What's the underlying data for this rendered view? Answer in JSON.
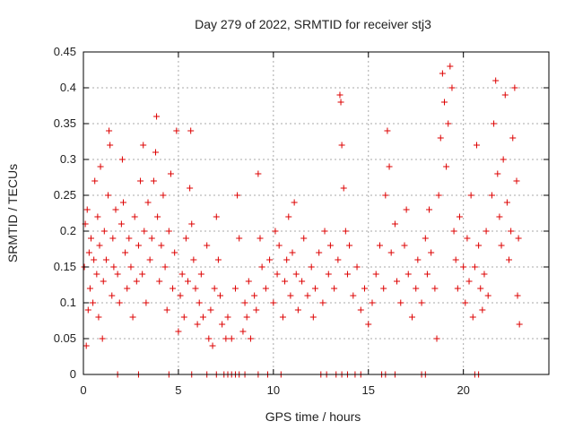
{
  "chart_data": {
    "type": "scatter",
    "title": "Day 279 of 2022, SRMTID for receiver stj3",
    "xlabel": "GPS time / hours",
    "ylabel": "SRMTID / TECUs",
    "xlim": [
      0,
      24.5
    ],
    "ylim": [
      0,
      0.45
    ],
    "xticks": [
      0,
      5,
      10,
      15,
      20
    ],
    "xtick_labels": [
      "0",
      "5",
      "10",
      "15",
      "20"
    ],
    "yticks": [
      0,
      0.05,
      0.1,
      0.15,
      0.2,
      0.25,
      0.3,
      0.35,
      0.4,
      0.45
    ],
    "ytick_labels": [
      "0",
      "0.05",
      "0.1",
      "0.15",
      "0.2",
      "0.25",
      "0.3",
      "0.35",
      "0.4",
      "0.45"
    ],
    "grid": true,
    "marker": "+",
    "color": "#dd0000",
    "series": [
      {
        "points": [
          [
            0.05,
            0.15
          ],
          [
            0.1,
            0.21
          ],
          [
            0.15,
            0.04
          ],
          [
            0.2,
            0.23
          ],
          [
            0.25,
            0.09
          ],
          [
            0.3,
            0.17
          ],
          [
            0.35,
            0.12
          ],
          [
            0.4,
            0.19
          ],
          [
            0.5,
            0.1
          ],
          [
            0.55,
            0.16
          ],
          [
            0.6,
            0.27
          ],
          [
            0.7,
            0.14
          ],
          [
            0.75,
            0.22
          ],
          [
            0.8,
            0.08
          ],
          [
            0.85,
            0.18
          ],
          [
            0.9,
            0.29
          ],
          [
            1.0,
            0.05
          ],
          [
            1.05,
            0.13
          ],
          [
            1.1,
            0.2
          ],
          [
            1.2,
            0.16
          ],
          [
            1.3,
            0.25
          ],
          [
            1.35,
            0.34
          ],
          [
            1.4,
            0.32
          ],
          [
            1.5,
            0.11
          ],
          [
            1.55,
            0.19
          ],
          [
            1.6,
            0.15
          ],
          [
            1.7,
            0.23
          ],
          [
            1.8,
            0.14
          ],
          [
            1.9,
            0.1
          ],
          [
            2.0,
            0.21
          ],
          [
            2.05,
            0.3
          ],
          [
            2.1,
            0.24
          ],
          [
            2.2,
            0.17
          ],
          [
            2.3,
            0.12
          ],
          [
            2.4,
            0.19
          ],
          [
            2.5,
            0.15
          ],
          [
            2.6,
            0.08
          ],
          [
            2.7,
            0.22
          ],
          [
            2.8,
            0.13
          ],
          [
            2.9,
            0.18
          ],
          [
            3.0,
            0.27
          ],
          [
            3.1,
            0.14
          ],
          [
            3.15,
            0.32
          ],
          [
            3.2,
            0.2
          ],
          [
            3.3,
            0.1
          ],
          [
            3.4,
            0.24
          ],
          [
            3.5,
            0.16
          ],
          [
            3.6,
            0.19
          ],
          [
            3.7,
            0.27
          ],
          [
            3.8,
            0.31
          ],
          [
            3.85,
            0.36
          ],
          [
            3.9,
            0.22
          ],
          [
            4.0,
            0.13
          ],
          [
            4.1,
            0.18
          ],
          [
            4.2,
            0.25
          ],
          [
            4.3,
            0.15
          ],
          [
            4.4,
            0.09
          ],
          [
            4.5,
            0.2
          ],
          [
            4.6,
            0.28
          ],
          [
            4.7,
            0.12
          ],
          [
            4.8,
            0.17
          ],
          [
            4.9,
            0.34
          ],
          [
            5.0,
            0.06
          ],
          [
            5.1,
            0.11
          ],
          [
            5.2,
            0.14
          ],
          [
            5.3,
            0.08
          ],
          [
            5.4,
            0.19
          ],
          [
            5.5,
            0.13
          ],
          [
            5.6,
            0.26
          ],
          [
            5.65,
            0.34
          ],
          [
            5.7,
            0.21
          ],
          [
            5.8,
            0.16
          ],
          [
            5.9,
            0.12
          ],
          [
            6.0,
            0.07
          ],
          [
            6.1,
            0.1
          ],
          [
            6.2,
            0.14
          ],
          [
            6.3,
            0.08
          ],
          [
            6.5,
            0.18
          ],
          [
            6.6,
            0.05
          ],
          [
            6.7,
            0.09
          ],
          [
            6.8,
            0.04
          ],
          [
            6.9,
            0.12
          ],
          [
            7.0,
            0.22
          ],
          [
            7.1,
            0.16
          ],
          [
            7.2,
            0.11
          ],
          [
            7.3,
            0.07
          ],
          [
            7.5,
            0.05
          ],
          [
            7.6,
            0.08
          ],
          [
            7.8,
            0.05
          ],
          [
            8.0,
            0.12
          ],
          [
            8.1,
            0.25
          ],
          [
            8.2,
            0.19
          ],
          [
            8.4,
            0.06
          ],
          [
            8.5,
            0.1
          ],
          [
            8.6,
            0.08
          ],
          [
            8.7,
            0.13
          ],
          [
            8.8,
            0.05
          ],
          [
            9.0,
            0.11
          ],
          [
            9.1,
            0.09
          ],
          [
            9.2,
            0.28
          ],
          [
            9.3,
            0.19
          ],
          [
            9.4,
            0.15
          ],
          [
            9.6,
            0.12
          ],
          [
            9.8,
            0.16
          ],
          [
            10.0,
            0.1
          ],
          [
            10.1,
            0.2
          ],
          [
            10.2,
            0.14
          ],
          [
            10.3,
            0.18
          ],
          [
            10.5,
            0.08
          ],
          [
            10.6,
            0.13
          ],
          [
            10.7,
            0.16
          ],
          [
            10.8,
            0.22
          ],
          [
            10.9,
            0.11
          ],
          [
            11.0,
            0.17
          ],
          [
            11.1,
            0.24
          ],
          [
            11.2,
            0.14
          ],
          [
            11.3,
            0.09
          ],
          [
            11.5,
            0.13
          ],
          [
            11.6,
            0.19
          ],
          [
            11.8,
            0.11
          ],
          [
            12.0,
            0.15
          ],
          [
            12.1,
            0.08
          ],
          [
            12.2,
            0.12
          ],
          [
            12.4,
            0.17
          ],
          [
            12.6,
            0.1
          ],
          [
            12.7,
            0.2
          ],
          [
            12.9,
            0.14
          ],
          [
            13.0,
            0.18
          ],
          [
            13.2,
            0.12
          ],
          [
            13.4,
            0.16
          ],
          [
            13.5,
            0.39
          ],
          [
            13.55,
            0.38
          ],
          [
            13.6,
            0.32
          ],
          [
            13.7,
            0.26
          ],
          [
            13.8,
            0.2
          ],
          [
            13.9,
            0.14
          ],
          [
            14.0,
            0.18
          ],
          [
            14.2,
            0.11
          ],
          [
            14.4,
            0.15
          ],
          [
            14.6,
            0.09
          ],
          [
            14.8,
            0.12
          ],
          [
            15.0,
            0.07
          ],
          [
            15.2,
            0.1
          ],
          [
            15.4,
            0.14
          ],
          [
            15.6,
            0.18
          ],
          [
            15.8,
            0.12
          ],
          [
            15.9,
            0.25
          ],
          [
            16.0,
            0.34
          ],
          [
            16.1,
            0.29
          ],
          [
            16.2,
            0.17
          ],
          [
            16.4,
            0.21
          ],
          [
            16.5,
            0.13
          ],
          [
            16.7,
            0.1
          ],
          [
            16.9,
            0.18
          ],
          [
            17.0,
            0.23
          ],
          [
            17.1,
            0.14
          ],
          [
            17.3,
            0.08
          ],
          [
            17.5,
            0.12
          ],
          [
            17.6,
            0.16
          ],
          [
            17.8,
            0.1
          ],
          [
            18.0,
            0.19
          ],
          [
            18.1,
            0.14
          ],
          [
            18.2,
            0.23
          ],
          [
            18.3,
            0.17
          ],
          [
            18.5,
            0.12
          ],
          [
            18.6,
            0.05
          ],
          [
            18.7,
            0.25
          ],
          [
            18.8,
            0.33
          ],
          [
            18.9,
            0.42
          ],
          [
            19.0,
            0.38
          ],
          [
            19.1,
            0.29
          ],
          [
            19.2,
            0.35
          ],
          [
            19.3,
            0.43
          ],
          [
            19.4,
            0.4
          ],
          [
            19.5,
            0.2
          ],
          [
            19.6,
            0.16
          ],
          [
            19.7,
            0.12
          ],
          [
            19.8,
            0.22
          ],
          [
            20.0,
            0.15
          ],
          [
            20.1,
            0.1
          ],
          [
            20.2,
            0.19
          ],
          [
            20.3,
            0.13
          ],
          [
            20.4,
            0.25
          ],
          [
            20.5,
            0.08
          ],
          [
            20.6,
            0.15
          ],
          [
            20.7,
            0.32
          ],
          [
            20.8,
            0.18
          ],
          [
            20.9,
            0.12
          ],
          [
            21.0,
            0.09
          ],
          [
            21.1,
            0.14
          ],
          [
            21.2,
            0.2
          ],
          [
            21.3,
            0.11
          ],
          [
            21.5,
            0.25
          ],
          [
            21.6,
            0.35
          ],
          [
            21.7,
            0.41
          ],
          [
            21.8,
            0.28
          ],
          [
            21.9,
            0.22
          ],
          [
            22.0,
            0.18
          ],
          [
            22.1,
            0.3
          ],
          [
            22.2,
            0.39
          ],
          [
            22.3,
            0.24
          ],
          [
            22.4,
            0.16
          ],
          [
            22.5,
            0.2
          ],
          [
            22.6,
            0.33
          ],
          [
            22.7,
            0.4
          ],
          [
            22.8,
            0.27
          ],
          [
            22.85,
            0.11
          ],
          [
            22.9,
            0.19
          ],
          [
            22.95,
            0.07
          ]
        ]
      },
      {
        "points": [
          [
            1.8,
            0
          ],
          [
            2.9,
            0
          ],
          [
            4.5,
            0
          ],
          [
            5.7,
            0
          ],
          [
            6.5,
            0
          ],
          [
            7.0,
            0
          ],
          [
            7.4,
            0
          ],
          [
            7.6,
            0
          ],
          [
            7.8,
            0
          ],
          [
            8.0,
            0
          ],
          [
            8.2,
            0
          ],
          [
            8.5,
            0
          ],
          [
            9.2,
            0
          ],
          [
            9.7,
            0
          ],
          [
            10.4,
            0
          ],
          [
            12.5,
            0
          ],
          [
            12.8,
            0
          ],
          [
            13.3,
            0
          ],
          [
            13.6,
            0
          ],
          [
            13.9,
            0
          ],
          [
            14.3,
            0
          ],
          [
            14.6,
            0
          ],
          [
            15.7,
            0
          ],
          [
            15.9,
            0
          ],
          [
            16.4,
            0
          ],
          [
            17.8,
            0
          ],
          [
            18.0,
            0
          ],
          [
            20.6,
            0
          ],
          [
            20.8,
            0
          ]
        ]
      }
    ]
  }
}
